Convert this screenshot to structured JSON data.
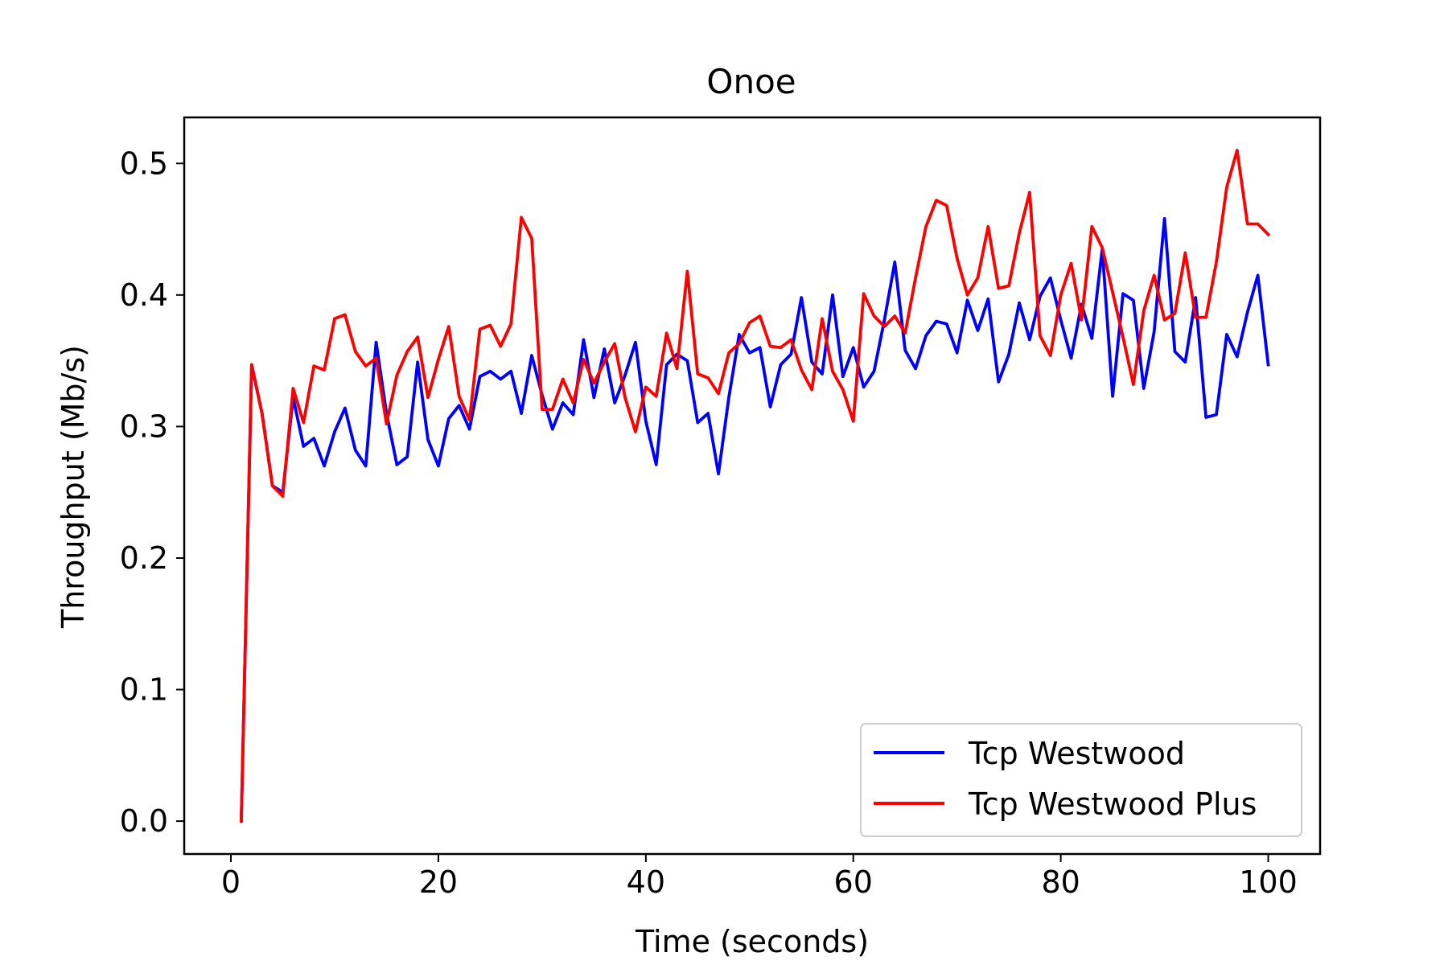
{
  "chart_data": {
    "type": "line",
    "title": "Onoe",
    "xlabel": "Time (seconds)",
    "ylabel": "Throughput (Mb/s)",
    "xlim": [
      -4.5,
      105
    ],
    "ylim": [
      -0.025,
      0.535
    ],
    "xticks": [
      0,
      20,
      40,
      60,
      80,
      100
    ],
    "xtick_labels": [
      "0",
      "20",
      "40",
      "60",
      "80",
      "100"
    ],
    "yticks": [
      0.0,
      0.1,
      0.2,
      0.3,
      0.4,
      0.5
    ],
    "ytick_labels": [
      "0.0",
      "0.1",
      "0.2",
      "0.3",
      "0.4",
      "0.5"
    ],
    "grid": false,
    "legend_position": "lower-right",
    "x": [
      1,
      2,
      3,
      4,
      5,
      6,
      7,
      8,
      9,
      10,
      11,
      12,
      13,
      14,
      15,
      16,
      17,
      18,
      19,
      20,
      21,
      22,
      23,
      24,
      25,
      26,
      27,
      28,
      29,
      30,
      31,
      32,
      33,
      34,
      35,
      36,
      37,
      38,
      39,
      40,
      41,
      42,
      43,
      44,
      45,
      46,
      47,
      48,
      49,
      50,
      51,
      52,
      53,
      54,
      55,
      56,
      57,
      58,
      59,
      60,
      61,
      62,
      63,
      64,
      65,
      66,
      67,
      68,
      69,
      70,
      71,
      72,
      73,
      74,
      75,
      76,
      77,
      78,
      79,
      80,
      81,
      82,
      83,
      84,
      85,
      86,
      87,
      88,
      89,
      90,
      91,
      92,
      93,
      94,
      95,
      96,
      97,
      98,
      99,
      100
    ],
    "series": [
      {
        "name": "Tcp Westwood",
        "color": "#0000ff",
        "values": [
          0.0,
          0.347,
          0.31,
          0.255,
          0.25,
          0.322,
          0.285,
          0.291,
          0.27,
          0.296,
          0.314,
          0.282,
          0.27,
          0.364,
          0.31,
          0.271,
          0.277,
          0.349,
          0.29,
          0.27,
          0.306,
          0.316,
          0.298,
          0.338,
          0.342,
          0.336,
          0.342,
          0.31,
          0.354,
          0.324,
          0.298,
          0.318,
          0.309,
          0.366,
          0.322,
          0.359,
          0.318,
          0.339,
          0.364,
          0.304,
          0.271,
          0.347,
          0.355,
          0.35,
          0.303,
          0.31,
          0.264,
          0.322,
          0.37,
          0.356,
          0.36,
          0.315,
          0.347,
          0.355,
          0.398,
          0.349,
          0.34,
          0.4,
          0.338,
          0.36,
          0.33,
          0.342,
          0.381,
          0.425,
          0.358,
          0.344,
          0.369,
          0.38,
          0.378,
          0.356,
          0.396,
          0.373,
          0.397,
          0.334,
          0.355,
          0.394,
          0.366,
          0.399,
          0.413,
          0.381,
          0.352,
          0.393,
          0.367,
          0.435,
          0.323,
          0.401,
          0.396,
          0.329,
          0.372,
          0.458,
          0.357,
          0.349,
          0.398,
          0.307,
          0.309,
          0.37,
          0.353,
          0.387,
          0.415,
          0.347
        ]
      },
      {
        "name": "Tcp Westwood Plus",
        "color": "#ff0000",
        "values": [
          0.0,
          0.347,
          0.31,
          0.255,
          0.247,
          0.329,
          0.303,
          0.346,
          0.343,
          0.382,
          0.385,
          0.357,
          0.346,
          0.352,
          0.302,
          0.339,
          0.357,
          0.368,
          0.322,
          0.351,
          0.376,
          0.323,
          0.305,
          0.374,
          0.377,
          0.361,
          0.378,
          0.459,
          0.443,
          0.313,
          0.313,
          0.336,
          0.318,
          0.351,
          0.333,
          0.349,
          0.363,
          0.322,
          0.296,
          0.33,
          0.323,
          0.371,
          0.344,
          0.418,
          0.34,
          0.337,
          0.325,
          0.356,
          0.363,
          0.379,
          0.384,
          0.361,
          0.36,
          0.366,
          0.343,
          0.328,
          0.382,
          0.342,
          0.328,
          0.304,
          0.401,
          0.384,
          0.376,
          0.384,
          0.371,
          0.413,
          0.452,
          0.472,
          0.468,
          0.428,
          0.4,
          0.413,
          0.452,
          0.405,
          0.407,
          0.447,
          0.478,
          0.369,
          0.354,
          0.4,
          0.424,
          0.381,
          0.452,
          0.436,
          0.402,
          0.368,
          0.332,
          0.388,
          0.415,
          0.381,
          0.386,
          0.432,
          0.383,
          0.383,
          0.425,
          0.482,
          0.51,
          0.454,
          0.454,
          0.446
        ]
      }
    ]
  }
}
